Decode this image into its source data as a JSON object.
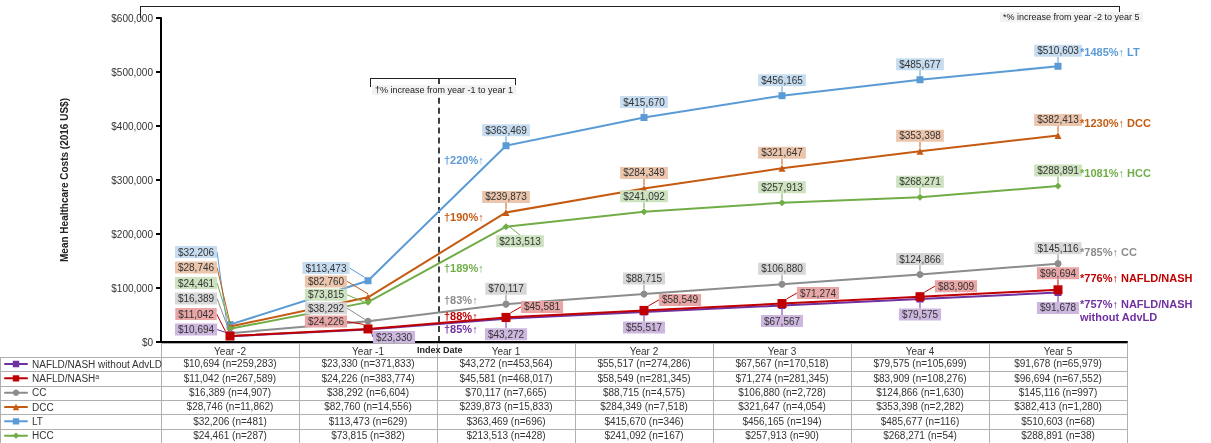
{
  "chart_data": {
    "type": "line",
    "ylabel": "Mean Healthcare Costs (2016 US$)",
    "categories": [
      "Year -2",
      "Year -1",
      "Year 1",
      "Year 2",
      "Year 3",
      "Year 4",
      "Year 5"
    ],
    "ylim": [
      0,
      600000
    ],
    "yticks": [
      {
        "value": 0,
        "label": "$0"
      },
      {
        "value": 100000,
        "label": "$100,000"
      },
      {
        "value": 200000,
        "label": "$200,000"
      },
      {
        "value": 300000,
        "label": "$300,000"
      },
      {
        "value": 400000,
        "label": "$400,000"
      },
      {
        "value": 500000,
        "label": "$500,000"
      },
      {
        "value": 600000,
        "label": "$600,000"
      }
    ],
    "grid": false,
    "legend": "bottom left",
    "series": [
      {
        "name": "NAFLD/NASH without AdvLD",
        "color": "#7030a0",
        "marker": "square",
        "values": [
          10694,
          23330,
          43272,
          55517,
          67567,
          79575,
          91678
        ],
        "value_labels": [
          "$10,694",
          "$23,330",
          "$43,272",
          "$55,517",
          "$67,567",
          "$79,575",
          "$91,678"
        ]
      },
      {
        "name": "NAFLD/NASH$^{a}$",
        "color": "#c00000",
        "marker": "square",
        "values": [
          11042,
          24226,
          45581,
          58549,
          71274,
          83909,
          96694
        ],
        "value_labels": [
          "$11,042",
          "$24,226",
          "$45,581",
          "$58,549",
          "$71,274",
          "$83,909",
          "$96,694"
        ]
      },
      {
        "name": "CC",
        "color": "#8c8c8c",
        "marker": "circle",
        "values": [
          16389,
          38292,
          70117,
          88715,
          106880,
          124866,
          145116
        ],
        "value_labels": [
          "$16,389",
          "$38,292",
          "$70,117",
          "$88,715",
          "$106,880",
          "$124,866",
          "$145,116"
        ]
      },
      {
        "name": "DCC",
        "color": "#c55a11",
        "marker": "triangle",
        "values": [
          28746,
          82760,
          239873,
          284349,
          321647,
          353398,
          382413
        ],
        "value_labels": [
          "$28,746",
          "$82,760",
          "$239,873",
          "$284,349",
          "$321,647",
          "$353,398",
          "$382,413"
        ]
      },
      {
        "name": "LT",
        "color": "#5b9bd5",
        "marker": "square",
        "values": [
          32206,
          113473,
          363469,
          415670,
          456165,
          485677,
          510603
        ],
        "value_labels": [
          "$32,206",
          "$113,473",
          "$363,469",
          "$415,670",
          "$456,165",
          "$485,677",
          "$510,603"
        ]
      },
      {
        "name": "HCC",
        "color": "#70ad47",
        "marker": "diamond",
        "values": [
          24461,
          73815,
          213513,
          241092,
          257913,
          268271,
          288891
        ],
        "value_labels": [
          "$24,461",
          "$73,815",
          "$213,513",
          "$241,092",
          "$257,913",
          "$268,271",
          "$288,891"
        ]
      }
    ],
    "annotations": [
      "*% increase from year -2 to year 5",
      "†% increase from year -1 to year 1",
      "Index Date",
      "*1485%↑ LT",
      "*1230%↑ DCC",
      "*1081%↑ HCC",
      "*785%↑ CC",
      "*776%↑ NAFLD/NASH",
      "*757%↑ NAFLD/NASH without AdvLD",
      "†220%↑",
      "†190%↑",
      "†189%↑",
      "†83%↑",
      "†88%↑",
      "†85%↑",
      "$10,694 (n=259,283)",
      "$23,330 (n=371,833)",
      "$43,272 (n=453,564)",
      "$55,517 (n=274,286)",
      "$67,567 (n=170,518)",
      "$79,575 (n=105,699)",
      "$91,678 (n=65,979)",
      "$11,042 (n=267,589)",
      "$24,226 (n=383,774)",
      "$45,581 (n=468,017)",
      "$58,549 (n=281,345)",
      "$71,274 (n=281,345)",
      "$83,909 (n=108,276)",
      "$96,694 (n=67,552)",
      "$16,389 (n=4,907)",
      "$38,292 (n=6,604)",
      "$70,117 (n=7,665)",
      "$88,715 (n=4,575)",
      "$106,880 (n=2,728)",
      "$124,866 (n=1,630)",
      "$145,116 (n=997)",
      "$28,746 (n=11,862)",
      "$82,760 (n=14,556)",
      "$239,873 (n=15,833)",
      "$284,349 (n=7,518)",
      "$321,647 (n=4,054)",
      "$353,398 (n=2,282)",
      "$382,413 (n=1,280)",
      "$32,206 (n=481)",
      "$113,473 (n=629)",
      "$363,469 (n=696)",
      "$415,670 (n=346)",
      "$456,165 (n=194)",
      "$485,677 (n=116)",
      "$510,603 (n=68)",
      "$24,461 (n=287)",
      "$73,815 (n=382)",
      "$213,513 (n=428)",
      "$241,092 (n=167)",
      "$257,913 (n=90)",
      "$268,271 (n=54)",
      "$288,891 (n=38)"
    ]
  }
}
